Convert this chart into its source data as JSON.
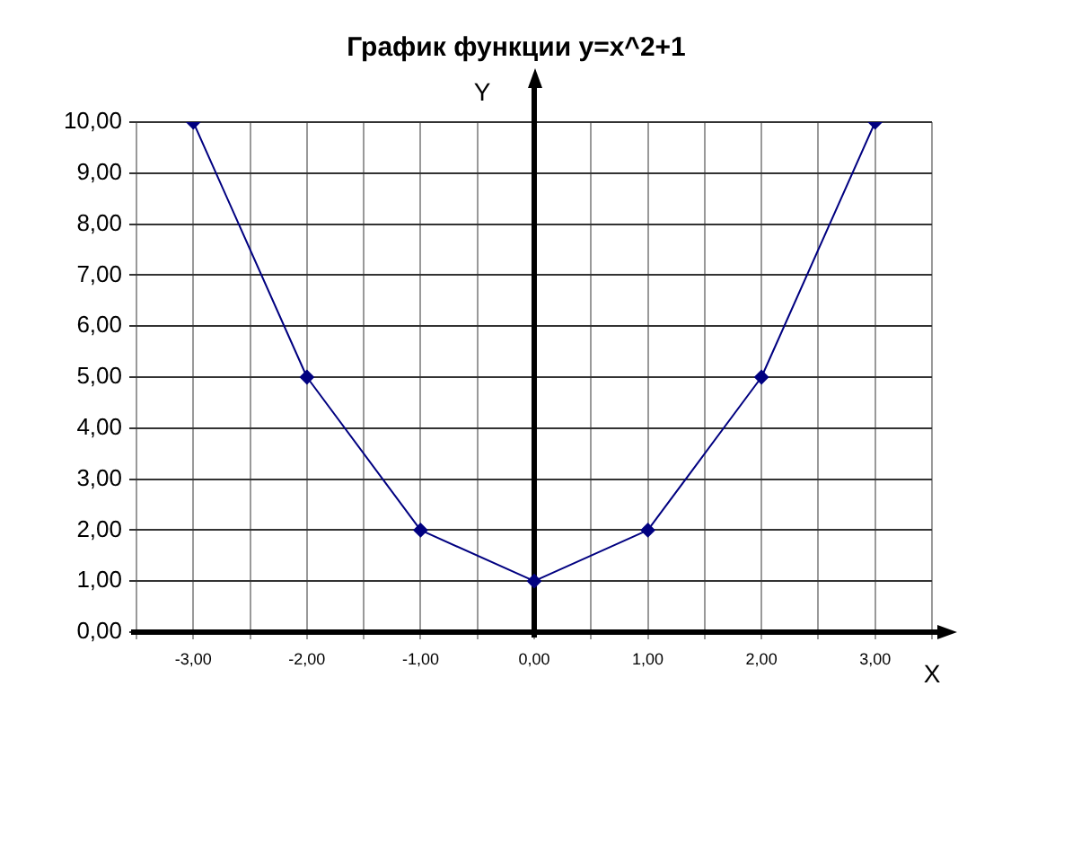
{
  "chart_data": {
    "type": "line",
    "title": "График функции y=x^2+1",
    "xlabel": "X",
    "ylabel": "Y",
    "x": [
      -3,
      -2,
      -1,
      0,
      1,
      2,
      3
    ],
    "series": [
      {
        "color": "#000080",
        "values": [
          10,
          5,
          2,
          1,
          2,
          5,
          10
        ]
      }
    ],
    "xlim": [
      -3.5,
      3.5
    ],
    "xticks": [
      {
        "value": -3.5,
        "label": null
      },
      {
        "value": -3,
        "label": "-3,00"
      },
      {
        "value": -2.5,
        "label": null
      },
      {
        "value": -2,
        "label": "-2,00"
      },
      {
        "value": -1.5,
        "label": null
      },
      {
        "value": -1,
        "label": "-1,00"
      },
      {
        "value": -0.5,
        "label": null
      },
      {
        "value": 0,
        "label": "0,00"
      },
      {
        "value": 0.5,
        "label": null
      },
      {
        "value": 1,
        "label": "1,00"
      },
      {
        "value": 1.5,
        "label": null
      },
      {
        "value": 2,
        "label": "2,00"
      },
      {
        "value": 2.5,
        "label": null
      },
      {
        "value": 3,
        "label": "3,00"
      },
      {
        "value": 3.5,
        "label": null
      }
    ],
    "ylim": [
      0,
      10
    ],
    "yticks": [
      {
        "value": 0,
        "label": "0,00"
      },
      {
        "value": 1,
        "label": "1,00"
      },
      {
        "value": 2,
        "label": "2,00"
      },
      {
        "value": 3,
        "label": "3,00"
      },
      {
        "value": 4,
        "label": "4,00"
      },
      {
        "value": 5,
        "label": "5,00"
      },
      {
        "value": 6,
        "label": "6,00"
      },
      {
        "value": 7,
        "label": "7,00"
      },
      {
        "value": 8,
        "label": "8,00"
      },
      {
        "value": 9,
        "label": "9,00"
      },
      {
        "value": 10,
        "label": "10,00"
      }
    ],
    "grid": true,
    "marker": "diamond",
    "line_style": "solid",
    "legend": false
  }
}
